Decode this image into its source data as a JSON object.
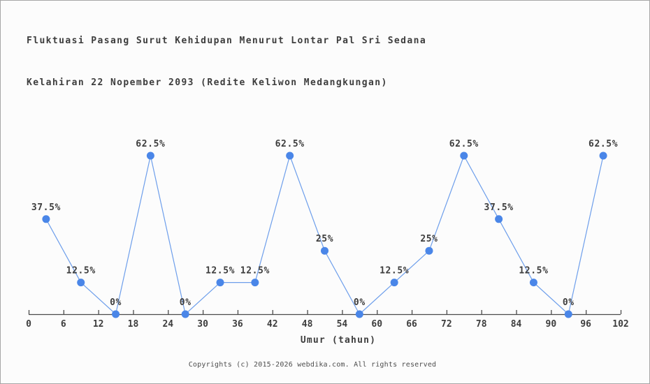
{
  "title": {
    "line1": "Fluktuasi Pasang Surut Kehidupan Menurut Lontar Pal Sri Sedana",
    "line2": "Kelahiran 22 Nopember 2093 (Redite Keliwon Medangkungan)"
  },
  "footer": {
    "text": "Copyrights (c) 2015-2026 webdika.com. All rights reserved"
  },
  "chart_data": {
    "type": "line",
    "title": "Fluktuasi Pasang Surut Kehidupan Menurut Lontar Pal Sri Sedana Kelahiran 22 Nopember 2093 (Redite Keliwon Medangkungan)",
    "x": [
      3,
      9,
      15,
      21,
      27,
      33,
      39,
      45,
      51,
      57,
      63,
      69,
      75,
      81,
      87,
      93,
      99
    ],
    "values": [
      37.5,
      12.5,
      0,
      62.5,
      0,
      12.5,
      12.5,
      62.5,
      25,
      0,
      12.5,
      25,
      62.5,
      37.5,
      12.5,
      0,
      62.5
    ],
    "point_labels": [
      "37.5%",
      "12.5%",
      "0%",
      "62.5%",
      "0%",
      "12.5%",
      "12.5%",
      "62.5%",
      "25%",
      "0%",
      "12.5%",
      "25%",
      "62.5%",
      "37.5%",
      "12.5%",
      "0%",
      "62.5%"
    ],
    "x_ticks": [
      0,
      6,
      12,
      18,
      24,
      30,
      36,
      42,
      48,
      54,
      60,
      66,
      72,
      78,
      84,
      90,
      96,
      102
    ],
    "xlabel": "Umur (tahun)",
    "ylabel": "",
    "xlim": [
      0,
      102
    ],
    "ylim": [
      0,
      70
    ],
    "grid": false,
    "legend": "none",
    "colors": {
      "line": "#6d9eeb",
      "marker": "#4a86e8",
      "axis": "#4b4b4b",
      "text": "#3d3d3d"
    }
  }
}
